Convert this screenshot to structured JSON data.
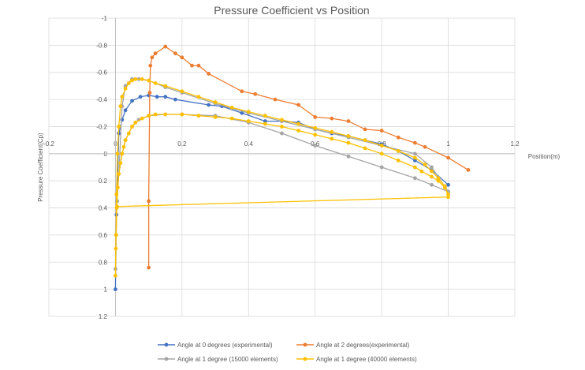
{
  "chart_data": {
    "type": "scatter",
    "title": "Pressure Coefficient vs Position",
    "xlabel": "Position(m)",
    "ylabel": "Pressure Coefficient(Cp)",
    "xlim": [
      -0.2,
      1.2
    ],
    "ylim": [
      -1,
      1.2
    ],
    "y_reversed": true,
    "grid": true,
    "legend_position": "bottom",
    "x_ticks": [
      "-0.2",
      "0",
      "0.2",
      "0.4",
      "0.6",
      "0.8",
      "1",
      "1.2"
    ],
    "x_tick_values": [
      -0.2,
      0,
      0.2,
      0.4,
      0.6,
      0.8,
      1,
      1.2
    ],
    "y_ticks": [
      "-1",
      "-0.8",
      "-0.6",
      "-0.4",
      "-0.2",
      "0",
      "0.2",
      "0.4",
      "0.6",
      "0.8",
      "1",
      "1.2"
    ],
    "y_tick_values": [
      -1,
      -0.8,
      -0.6,
      -0.4,
      -0.2,
      0,
      0.2,
      0.4,
      0.6,
      0.8,
      1,
      1.2
    ],
    "series": [
      {
        "name": "Angle at 0 degrees (experimental)",
        "color": "#4472C4",
        "x": [
          0.0,
          0.003,
          0.01,
          0.02,
          0.03,
          0.05,
          0.075,
          0.1,
          0.125,
          0.15,
          0.18,
          0.28,
          0.32,
          0.38,
          0.45,
          0.5,
          0.55,
          0.6,
          0.65,
          0.7,
          0.75,
          0.8,
          0.85,
          0.9,
          0.95,
          1.0
        ],
        "y": [
          1.0,
          0.45,
          -0.15,
          -0.25,
          -0.32,
          -0.39,
          -0.42,
          -0.43,
          -0.42,
          -0.42,
          -0.4,
          -0.36,
          -0.35,
          -0.3,
          -0.24,
          -0.24,
          -0.23,
          -0.18,
          -0.15,
          -0.13,
          -0.1,
          -0.07,
          -0.02,
          0.05,
          0.12,
          0.23
        ]
      },
      {
        "name": "Angle at 2 degrees(experimental)",
        "color": "#ED7D31",
        "x": [
          0.1,
          0.1,
          0.103,
          0.105,
          0.11,
          0.12,
          0.15,
          0.18,
          0.2,
          0.23,
          0.25,
          0.28,
          0.38,
          0.42,
          0.48,
          0.55,
          0.6,
          0.65,
          0.7,
          0.75,
          0.8,
          0.85,
          0.9,
          0.93,
          1.0,
          1.06
        ],
        "y": [
          0.84,
          0.35,
          -0.45,
          -0.65,
          -0.71,
          -0.74,
          -0.79,
          -0.74,
          -0.71,
          -0.65,
          -0.65,
          -0.59,
          -0.46,
          -0.44,
          -0.4,
          -0.36,
          -0.27,
          -0.26,
          -0.24,
          -0.18,
          -0.17,
          -0.12,
          -0.08,
          -0.05,
          0.03,
          0.12
        ]
      },
      {
        "name": "Angle at 1 degree (15000 elements)",
        "color": "#A5A5A5",
        "x": [
          1.0,
          0.95,
          0.9,
          0.8,
          0.7,
          0.6,
          0.5,
          0.4,
          0.3,
          0.2,
          0.15,
          0.1,
          0.07,
          0.05,
          0.03,
          0.02,
          0.01,
          0.005,
          0.002,
          0.0,
          0.002,
          0.005,
          0.01,
          0.02,
          0.03,
          0.05,
          0.07,
          0.1,
          0.15,
          0.2,
          0.3,
          0.4,
          0.5,
          0.6,
          0.7,
          0.8,
          0.9,
          0.95,
          1.0
        ],
        "y": [
          0.28,
          0.23,
          0.18,
          0.1,
          0.02,
          -0.06,
          -0.15,
          -0.23,
          -0.28,
          -0.29,
          -0.29,
          -0.28,
          -0.25,
          -0.2,
          -0.1,
          0.0,
          0.15,
          0.35,
          0.6,
          0.85,
          0.6,
          0.35,
          0.15,
          -0.35,
          -0.5,
          -0.55,
          -0.55,
          -0.54,
          -0.49,
          -0.45,
          -0.37,
          -0.3,
          -0.24,
          -0.18,
          -0.12,
          -0.06,
          0.0,
          0.1,
          0.28
        ]
      },
      {
        "name": "Angle at 1 degree (40000 elements)",
        "color": "#FFC000",
        "x": [
          1.0,
          0.99,
          0.97,
          0.95,
          0.92,
          0.9,
          0.85,
          0.8,
          0.75,
          0.7,
          0.65,
          0.6,
          0.55,
          0.5,
          0.45,
          0.4,
          0.35,
          0.3,
          0.25,
          0.2,
          0.15,
          0.12,
          0.1,
          0.08,
          0.06,
          0.05,
          0.04,
          0.03,
          0.025,
          0.02,
          0.015,
          0.01,
          0.007,
          0.004,
          0.002,
          0.0,
          0.001,
          0.003,
          0.006,
          0.01,
          0.015,
          0.02,
          0.03,
          0.04,
          0.05,
          0.06,
          0.08,
          0.1,
          0.12,
          0.15,
          0.2,
          0.25,
          0.3,
          0.35,
          0.4,
          0.45,
          0.5,
          0.55,
          0.6,
          0.65,
          0.7,
          0.75,
          0.8,
          0.85,
          0.9,
          0.93,
          0.95,
          0.97,
          0.99,
          1.0,
          0.005
        ],
        "y": [
          0.3,
          0.25,
          0.2,
          0.17,
          0.13,
          0.1,
          0.05,
          0.0,
          -0.04,
          -0.08,
          -0.11,
          -0.14,
          -0.17,
          -0.2,
          -0.22,
          -0.24,
          -0.26,
          -0.27,
          -0.28,
          -0.29,
          -0.29,
          -0.29,
          -0.28,
          -0.26,
          -0.23,
          -0.2,
          -0.15,
          -0.1,
          -0.05,
          0.0,
          0.07,
          0.15,
          0.25,
          0.4,
          0.6,
          0.9,
          0.7,
          0.3,
          0.0,
          -0.2,
          -0.35,
          -0.42,
          -0.48,
          -0.52,
          -0.54,
          -0.55,
          -0.55,
          -0.54,
          -0.52,
          -0.5,
          -0.46,
          -0.42,
          -0.38,
          -0.34,
          -0.31,
          -0.28,
          -0.25,
          -0.22,
          -0.19,
          -0.16,
          -0.13,
          -0.1,
          -0.06,
          -0.02,
          0.03,
          0.08,
          0.13,
          0.18,
          0.24,
          0.32,
          0.39
        ]
      }
    ]
  }
}
